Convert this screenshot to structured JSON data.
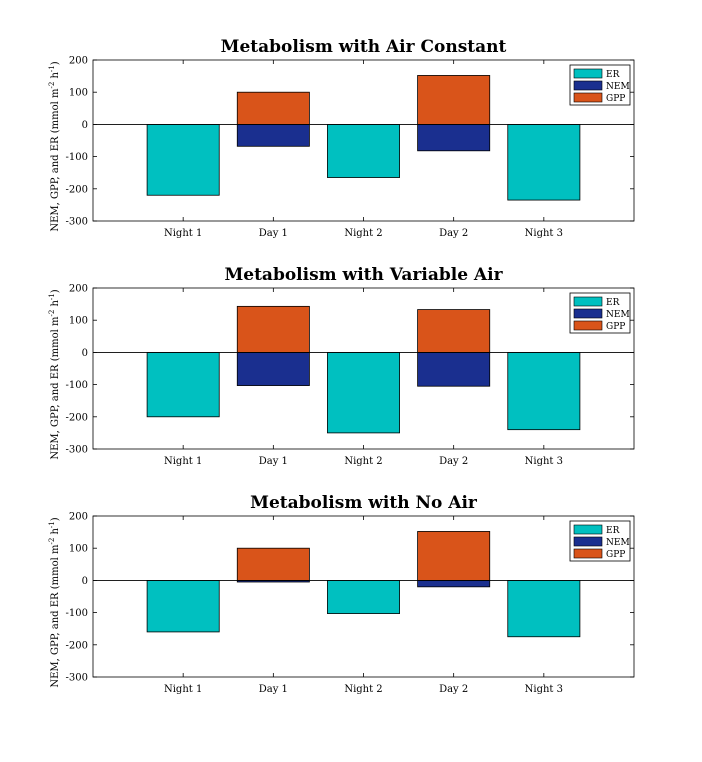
{
  "chart_data": [
    {
      "type": "bar",
      "title": "Metabolism with Air Constant",
      "ylabel": "NEM, GPP, and ER (mmol m",
      "ylabel_sup1": "-2",
      "ylabel_mid": " h",
      "ylabel_sup2": "-1",
      "ylabel_end": ")",
      "ylim": [
        -300,
        200
      ],
      "yticks": [
        "200",
        "100",
        "0",
        "-100",
        "-200",
        "-300"
      ],
      "categories": [
        "Night 1",
        "Day 1",
        "Night 2",
        "Day 2",
        "Night 3"
      ],
      "series": [
        {
          "name": "ER",
          "values": [
            -220,
            null,
            -165,
            null,
            -235
          ]
        },
        {
          "name": "NEM",
          "values": [
            null,
            -68,
            null,
            -82,
            null
          ]
        },
        {
          "name": "GPP",
          "values": [
            null,
            100,
            null,
            152,
            null
          ]
        }
      ],
      "legend": "top-right",
      "grid": false
    },
    {
      "type": "bar",
      "title": "Metabolism with Variable Air",
      "ylabel": "NEM, GPP, and ER (mmol m",
      "ylabel_sup1": "-2",
      "ylabel_mid": " h",
      "ylabel_sup2": "-1",
      "ylabel_end": ")",
      "ylim": [
        -300,
        200
      ],
      "yticks": [
        "200",
        "100",
        "0",
        "-100",
        "-200",
        "-300"
      ],
      "categories": [
        "Night 1",
        "Day 1",
        "Night 2",
        "Day 2",
        "Night 3"
      ],
      "series": [
        {
          "name": "ER",
          "values": [
            -200,
            null,
            -250,
            null,
            -240
          ]
        },
        {
          "name": "NEM",
          "values": [
            null,
            -103,
            null,
            -105,
            null
          ]
        },
        {
          "name": "GPP",
          "values": [
            null,
            143,
            null,
            133,
            null
          ]
        }
      ],
      "legend": "top-right",
      "grid": false
    },
    {
      "type": "bar",
      "title": "Metabolism with No Air",
      "ylabel": "NEM, GPP, and ER (mmol m",
      "ylabel_sup1": "-2",
      "ylabel_mid": " h",
      "ylabel_sup2": "-1",
      "ylabel_end": ")",
      "ylim": [
        -300,
        200
      ],
      "yticks": [
        "200",
        "100",
        "0",
        "-100",
        "-200",
        "-300"
      ],
      "categories": [
        "Night 1",
        "Day 1",
        "Night 2",
        "Day 2",
        "Night 3"
      ],
      "series": [
        {
          "name": "ER",
          "values": [
            -160,
            null,
            -103,
            null,
            -175
          ]
        },
        {
          "name": "NEM",
          "values": [
            null,
            -5,
            null,
            -20,
            null
          ]
        },
        {
          "name": "GPP",
          "values": [
            null,
            100,
            null,
            152,
            null
          ]
        }
      ],
      "legend": "top-right",
      "grid": false
    }
  ],
  "colors": {
    "ER": "#00c0c0",
    "NEM": "#1a2f8f",
    "GPP": "#d9541a"
  }
}
